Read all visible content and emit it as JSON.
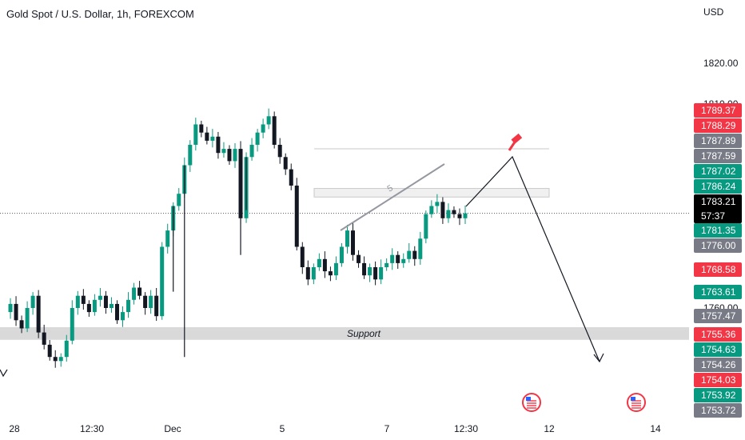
{
  "title": "Gold Spot / U.S. Dollar, 1h, FOREXCOM",
  "colors": {
    "up": "#089981",
    "down": "#131722",
    "red": "#f23645",
    "gray": "#787b86",
    "black": "#000000",
    "zone": "#d9d9d9"
  },
  "chart_data": {
    "type": "candlestick",
    "title": "Gold Spot / U.S. Dollar, 1h, FOREXCOM",
    "currency_label": "USD",
    "y_ticks": [
      "1820.00",
      "1810.00",
      "1760.00"
    ],
    "x_ticks": [
      "28",
      "12:30",
      "Dec",
      "5",
      "7",
      "12:30",
      "12",
      "14"
    ],
    "price_path": [
      1759,
      1761,
      1757,
      1755,
      1760,
      1763,
      1754,
      1751,
      1748,
      1747,
      1748,
      1752,
      1760,
      1763,
      1761,
      1759,
      1762,
      1763,
      1760,
      1761,
      1757,
      1759,
      1762,
      1765,
      1763,
      1760,
      1763,
      1758,
      1775,
      1779,
      1785,
      1788,
      1795,
      1800,
      1805,
      1803,
      1801,
      1802,
      1798,
      1799,
      1796,
      1799,
      1782,
      1797,
      1800,
      1803,
      1805,
      1807,
      1800,
      1797,
      1794,
      1790,
      1775,
      1770,
      1767,
      1770,
      1772,
      1769,
      1768,
      1771,
      1775,
      1779,
      1773,
      1771,
      1768,
      1770,
      1767,
      1770,
      1771,
      1773,
      1771,
      1772,
      1774,
      1772,
      1777,
      1783,
      1785,
      1786,
      1782,
      1784,
      1783,
      1782,
      1783.2
    ],
    "wick_marks": [
      [
        30,
        1764
      ],
      [
        32,
        1748
      ],
      [
        43,
        1784
      ],
      [
        42,
        1773
      ]
    ],
    "last_price": 1783.21,
    "support_zone": {
      "label": "Support",
      "from": 1752.2,
      "to": 1755.3
    },
    "resistance_zone": {
      "from": 1787.2,
      "to": 1789.3
    },
    "wedge_line": {
      "label": "5"
    },
    "price_tags": [
      {
        "value": "1789.37",
        "kind": "red"
      },
      {
        "value": "1788.29",
        "kind": "red"
      },
      {
        "value": "1787.89",
        "kind": "gray"
      },
      {
        "value": "1787.59",
        "kind": "gray"
      },
      {
        "value": "1787.02",
        "kind": "up"
      },
      {
        "value": "1786.24",
        "kind": "up"
      },
      {
        "value": "1783.21",
        "sub": "57:37",
        "kind": "black"
      },
      {
        "value": "1781.35",
        "kind": "up"
      },
      {
        "value": "1776.00",
        "kind": "gray"
      },
      {
        "value": "1768.58",
        "kind": "red"
      },
      {
        "value": "1763.61",
        "kind": "up"
      },
      {
        "value": "1757.47",
        "kind": "gray"
      },
      {
        "value": "1755.36",
        "kind": "red"
      },
      {
        "value": "1754.63",
        "kind": "up"
      },
      {
        "value": "1754.26",
        "kind": "gray"
      },
      {
        "value": "1754.03",
        "kind": "red"
      },
      {
        "value": "1753.92",
        "kind": "up"
      },
      {
        "value": "1753.72",
        "kind": "gray"
      }
    ]
  }
}
